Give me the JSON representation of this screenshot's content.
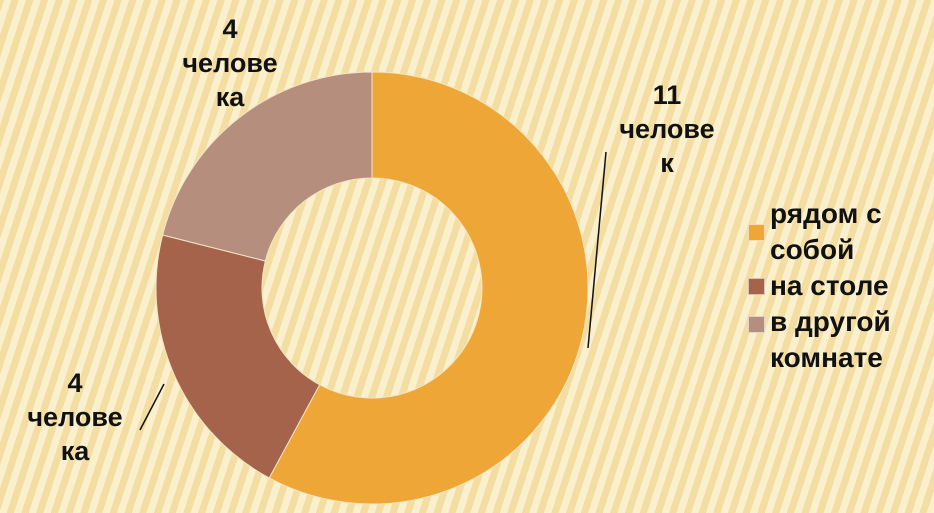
{
  "chart_data": {
    "type": "pie",
    "variant": "donut",
    "categories": [
      "рядом с собой",
      "на столе",
      "в другой комнате"
    ],
    "values": [
      11,
      4,
      4
    ],
    "colors": [
      "#eea637",
      "#a5634b",
      "#b58e7e"
    ],
    "data_labels": [
      {
        "value": "11",
        "line1": "челове",
        "line2": "к"
      },
      {
        "value": "4",
        "line1": "челове",
        "line2": "ка"
      },
      {
        "value": "4",
        "line1": "челове",
        "line2": "ка"
      }
    ],
    "legend": {
      "position": "right",
      "entries": [
        {
          "line1": "рядом с",
          "line2": "собой"
        },
        {
          "line1": "на столе"
        },
        {
          "line1": "в другой",
          "line2": "комнате"
        }
      ]
    }
  }
}
